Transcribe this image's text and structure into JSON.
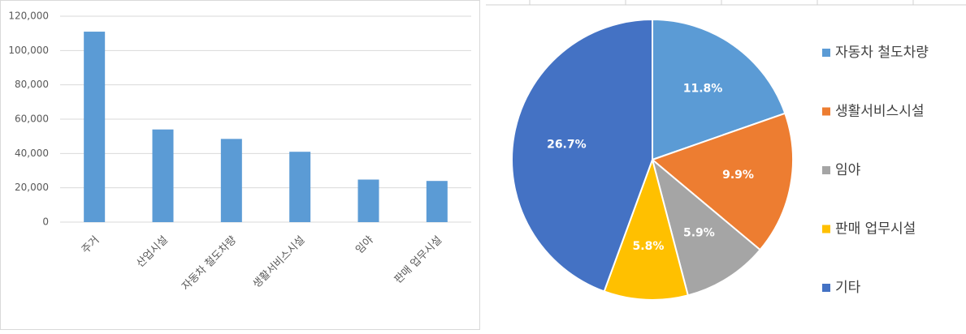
{
  "chart_data": [
    {
      "type": "bar",
      "categories": [
        "주거",
        "산업시설",
        "자동차 철도차량",
        "생활서비스시설",
        "임야",
        "판매 업무시설"
      ],
      "values": [
        111000,
        54000,
        48500,
        41000,
        24800,
        24000
      ],
      "color": "#5b9bd5",
      "ylim": [
        0,
        120000
      ],
      "yticks": [
        0,
        {
          "value": 20000,
          "label": "20,000"
        },
        {
          "value": 40000,
          "label": "40,000"
        },
        {
          "value": 60000,
          "label": "60,000"
        },
        {
          "value": 80000,
          "label": "80,000"
        },
        {
          "value": 100000,
          "label": "100,000"
        },
        {
          "value": 120000,
          "label": "120,000"
        }
      ],
      "grid": true
    },
    {
      "type": "pie",
      "categories": [
        "자동차 철도차량",
        "생활서비스시설",
        "임야",
        "판매 업무시설",
        "기타"
      ],
      "values": [
        11.8,
        9.9,
        5.9,
        5.8,
        26.7
      ],
      "value_labels": [
        "11.8%",
        "9.9%",
        "5.9%",
        "5.8%",
        "26.7%"
      ],
      "colors": [
        "#5b9bd5",
        "#ed7d31",
        "#a5a5a5",
        "#ffc000",
        "#4472c4"
      ],
      "legend": "right"
    }
  ]
}
